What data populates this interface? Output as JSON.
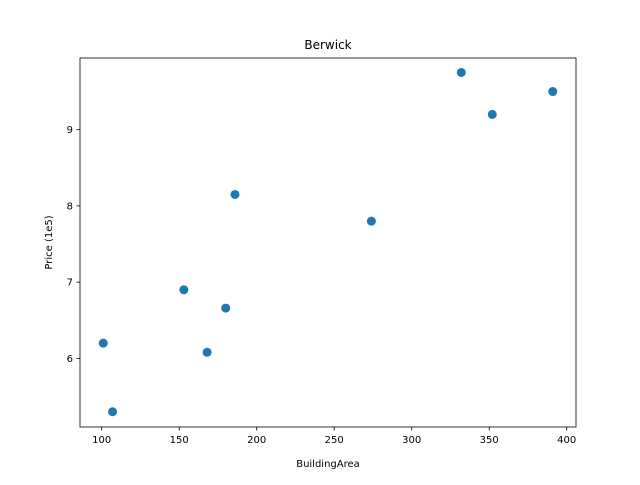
{
  "chart_data": {
    "type": "scatter",
    "title": "Berwick",
    "xlabel": "BuildingArea",
    "ylabel": "Price (1e5)",
    "xlim": [
      86,
      406
    ],
    "ylim": [
      5.1,
      9.94
    ],
    "xticks": [
      100,
      150,
      200,
      250,
      300,
      350,
      400
    ],
    "yticks": [
      6,
      7,
      8,
      9
    ],
    "grid": false,
    "series": [
      {
        "color": "#1f77b4",
        "points": [
          {
            "x": 101,
            "y": 6.2
          },
          {
            "x": 107,
            "y": 5.3
          },
          {
            "x": 153,
            "y": 6.9
          },
          {
            "x": 168,
            "y": 6.08
          },
          {
            "x": 180,
            "y": 6.66
          },
          {
            "x": 186,
            "y": 8.15
          },
          {
            "x": 274,
            "y": 7.8
          },
          {
            "x": 332,
            "y": 9.75
          },
          {
            "x": 352,
            "y": 9.2
          },
          {
            "x": 391,
            "y": 9.5
          }
        ]
      }
    ]
  }
}
